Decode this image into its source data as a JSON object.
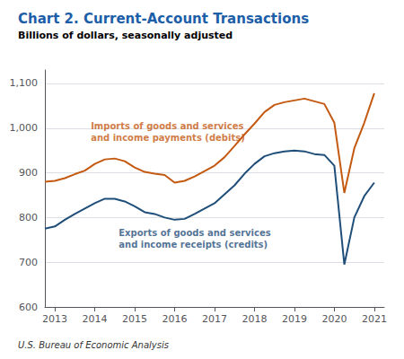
{
  "chart_data": {
    "type": "line",
    "title": "Chart 2. Current-Account Transactions",
    "subtitle": "Billions of dollars, seasonally adjusted",
    "footer": "U.S. Bureau of Economic Analysis",
    "title_color": "#1d5ea8",
    "x": [
      2012.75,
      2013.0,
      2013.25,
      2013.5,
      2013.75,
      2014.0,
      2014.25,
      2014.5,
      2014.75,
      2015.0,
      2015.25,
      2015.5,
      2015.75,
      2016.0,
      2016.25,
      2016.5,
      2016.75,
      2017.0,
      2017.25,
      2017.5,
      2017.75,
      2018.0,
      2018.25,
      2018.5,
      2018.75,
      2019.0,
      2019.25,
      2019.5,
      2019.75,
      2020.0,
      2020.25,
      2020.5,
      2020.75,
      2021.0
    ],
    "series": [
      {
        "color": "#c45911",
        "values": [
          880,
          882,
          888,
          897,
          905,
          920,
          930,
          932,
          926,
          912,
          902,
          898,
          895,
          878,
          882,
          892,
          904,
          916,
          935,
          960,
          986,
          1010,
          1036,
          1052,
          1058,
          1062,
          1066,
          1060,
          1054,
          1012,
          855,
          955,
          1012,
          1078
        ]
      },
      {
        "color": "#1f4e79",
        "values": [
          775,
          780,
          795,
          808,
          820,
          832,
          842,
          842,
          836,
          825,
          812,
          808,
          800,
          795,
          797,
          808,
          820,
          832,
          852,
          872,
          898,
          920,
          937,
          944,
          948,
          950,
          948,
          942,
          940,
          916,
          695,
          800,
          848,
          878
        ]
      }
    ],
    "annotations": [
      {
        "text": "Imports of goods and services\nand income payments (debits)",
        "x": 2013.9,
        "y": 1018,
        "color": "#c45911"
      },
      {
        "text": "Exports of goods and services\nand income receipts (credits)",
        "x": 2014.6,
        "y": 778,
        "color": "#1f4e79"
      }
    ],
    "xlim": [
      2012.75,
      2021.25
    ],
    "xticks": [
      2013,
      2014,
      2015,
      2016,
      2017,
      2018,
      2019,
      2020,
      2021
    ],
    "ylim": [
      600,
      1130
    ],
    "yticks": [
      600,
      700,
      800,
      900,
      {
        "value": 1000,
        "label": "1,000"
      },
      {
        "value": 1100,
        "label": "1,100"
      }
    ],
    "grid": true
  }
}
